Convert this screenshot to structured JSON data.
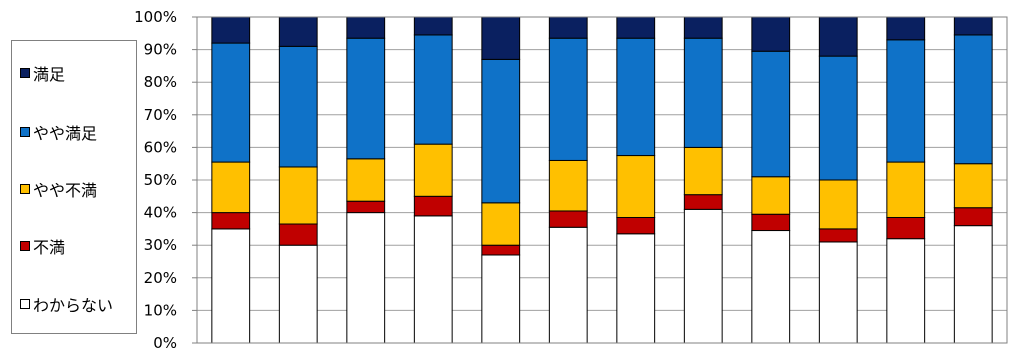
{
  "chart_data": {
    "type": "bar",
    "stacked": true,
    "categories": [
      "",
      "",
      "",
      "",
      "",
      "",
      "",
      "",
      "",
      "",
      "",
      ""
    ],
    "y_ticks": [
      "0%",
      "10%",
      "20%",
      "30%",
      "40%",
      "50%",
      "60%",
      "70%",
      "80%",
      "90%",
      "100%"
    ],
    "ylim": [
      0,
      100
    ],
    "grid": true,
    "legend_position": "left",
    "series": [
      {
        "name": "わからない",
        "color": "#ffffff",
        "values": [
          35,
          30,
          40,
          39,
          27,
          35.5,
          33.5,
          41,
          34.5,
          31,
          32,
          36
        ]
      },
      {
        "name": "不満",
        "color": "#c00000",
        "values": [
          5,
          6.5,
          3.5,
          6,
          3,
          5,
          5,
          4.5,
          5,
          4,
          6.5,
          5.5
        ]
      },
      {
        "name": "やや不満",
        "color": "#ffc000",
        "values": [
          15.5,
          17.5,
          13,
          16,
          13,
          15.5,
          19,
          14.5,
          11.5,
          15,
          17,
          13.5
        ]
      },
      {
        "name": "やや満足",
        "color": "#0f72c8",
        "values": [
          36.5,
          37,
          37,
          33.5,
          44,
          37.5,
          36,
          33.5,
          38.5,
          38,
          37.5,
          39.5
        ]
      },
      {
        "name": "満足",
        "color": "#0a2060",
        "values": [
          8,
          9,
          6.5,
          5.5,
          13,
          6.5,
          6.5,
          6.5,
          10.5,
          12,
          7,
          5.5
        ]
      }
    ],
    "legend_order": [
      "満足",
      "やや満足",
      "やや不満",
      "不満",
      "わからない"
    ]
  }
}
